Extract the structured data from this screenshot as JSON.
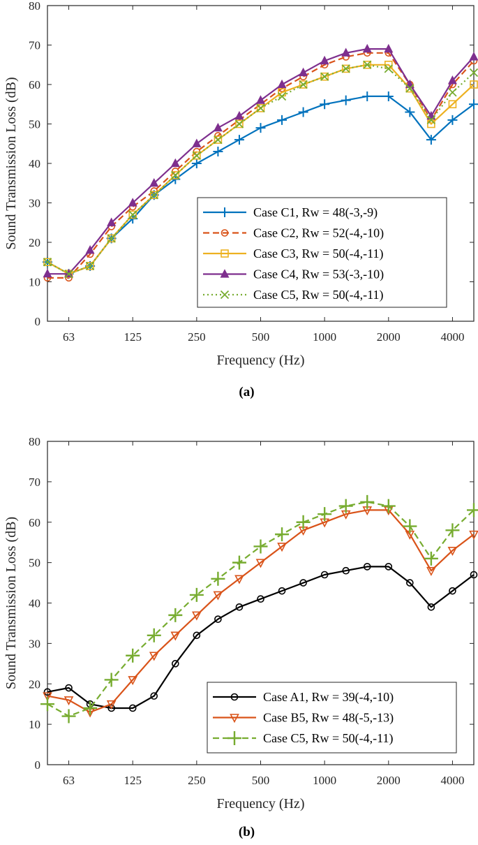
{
  "chart_data": [
    {
      "type": "line",
      "caption": "(a)",
      "xlabel": "Frequency (Hz)",
      "ylabel": "Sound  Transmission  Loss  (dB)",
      "ylim": [
        0,
        80
      ],
      "yticks": [
        0,
        10,
        20,
        30,
        40,
        50,
        60,
        70,
        80
      ],
      "x": [
        "50",
        "63",
        "80",
        "100",
        "125",
        "160",
        "200",
        "250",
        "315",
        "400",
        "500",
        "630",
        "800",
        "1000",
        "1250",
        "1600",
        "2000",
        "2500",
        "3150",
        "4000",
        "5000"
      ],
      "xtick_labels": [
        "63",
        "125",
        "250",
        "500",
        "1000",
        "2000",
        "4000"
      ],
      "legend_position": "lower-right",
      "series": [
        {
          "name": "Case C1, Rw = 48(-3,-9)",
          "color": "#0072BD",
          "marker": "plus",
          "dash": "solid",
          "values": [
            15,
            12,
            14,
            21,
            26,
            32,
            36,
            40,
            43,
            46,
            49,
            51,
            53,
            55,
            56,
            57,
            57,
            53,
            46,
            51,
            55
          ]
        },
        {
          "name": "Case C2, Rw = 52(-4,-10)",
          "color": "#D95319",
          "marker": "circle",
          "dash": "dashed",
          "values": [
            11,
            11,
            17,
            24,
            29,
            33,
            38,
            43,
            47,
            51,
            55,
            59,
            62,
            65,
            67,
            68,
            68,
            60,
            51,
            60,
            66
          ]
        },
        {
          "name": "Case C3, Rw = 50(-4,-11)",
          "color": "#EDB120",
          "marker": "square",
          "dash": "solid",
          "values": [
            15,
            12,
            14,
            21,
            27,
            32,
            37,
            42,
            46,
            50,
            54,
            58,
            60,
            62,
            64,
            65,
            65,
            59,
            50,
            55,
            60
          ]
        },
        {
          "name": "Case C4, Rw = 53(-3,-10)",
          "color": "#7E2F8E",
          "marker": "triangle",
          "dash": "solid",
          "values": [
            12,
            12,
            18,
            25,
            30,
            35,
            40,
            45,
            49,
            52,
            56,
            60,
            63,
            66,
            68,
            69,
            69,
            60,
            52,
            61,
            67
          ]
        },
        {
          "name": "Case C5, Rw = 50(-4,-11)",
          "color": "#77AC30",
          "marker": "x",
          "dash": "dotted",
          "values": [
            15,
            12,
            14,
            21,
            27,
            32,
            37,
            42,
            46,
            50,
            54,
            57,
            60,
            62,
            64,
            65,
            64,
            59,
            51,
            58,
            63
          ]
        }
      ]
    },
    {
      "type": "line",
      "caption": "(b)",
      "xlabel": "Frequency (Hz)",
      "ylabel": "Sound  Transmission  Loss  (dB)",
      "ylim": [
        0,
        80
      ],
      "yticks": [
        0,
        10,
        20,
        30,
        40,
        50,
        60,
        70,
        80
      ],
      "x": [
        "50",
        "63",
        "80",
        "100",
        "125",
        "160",
        "200",
        "250",
        "315",
        "400",
        "500",
        "630",
        "800",
        "1000",
        "1250",
        "1600",
        "2000",
        "2500",
        "3150",
        "4000",
        "5000"
      ],
      "xtick_labels": [
        "63",
        "125",
        "250",
        "500",
        "1000",
        "2000",
        "4000"
      ],
      "legend_position": "lower-right",
      "series": [
        {
          "name": "Case A1, Rw = 39(-4,-10)",
          "color": "#000000",
          "marker": "circle",
          "dash": "solid",
          "values": [
            18,
            19,
            15,
            14,
            14,
            17,
            25,
            32,
            36,
            39,
            41,
            43,
            45,
            47,
            48,
            49,
            49,
            45,
            39,
            43,
            47
          ]
        },
        {
          "name": "Case B5, Rw = 48(-5,-13)",
          "color": "#D95319",
          "marker": "triangle-down",
          "dash": "solid",
          "values": [
            17,
            16,
            13,
            15,
            21,
            27,
            32,
            37,
            42,
            46,
            50,
            54,
            58,
            60,
            62,
            63,
            63,
            57,
            48,
            53,
            57
          ]
        },
        {
          "name": "Case C5, Rw = 50(-4,-11)",
          "color": "#77AC30",
          "marker": "plus-large",
          "dash": "dashed",
          "values": [
            15,
            12,
            14,
            21,
            27,
            32,
            37,
            42,
            46,
            50,
            54,
            57,
            60,
            62,
            64,
            65,
            64,
            59,
            51,
            58,
            63
          ]
        }
      ]
    }
  ]
}
